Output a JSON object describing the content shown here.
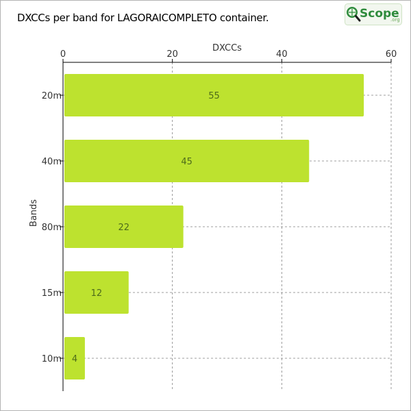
{
  "title": "DXCCs per band for LAGORAICOMPLETO container.",
  "logo": {
    "text": "Scope",
    "suffix": ".org",
    "icon": "magnifier-globe-icon"
  },
  "colors": {
    "bar": "#bde22f",
    "grid": "#808080",
    "axis": "#000000",
    "logo_green": "#2e8b3c"
  },
  "chart_data": {
    "type": "bar",
    "orientation": "horizontal",
    "title": "DXCCs per band for LAGORAICOMPLETO container.",
    "xlabel": "DXCCs",
    "ylabel": "Bands",
    "categories": [
      "20m",
      "40m",
      "80m",
      "15m",
      "10m"
    ],
    "values": [
      55,
      45,
      22,
      12,
      4
    ],
    "xlim": [
      0,
      60
    ],
    "xticks": [
      0,
      20,
      40,
      60
    ],
    "x_axis_position": "top",
    "grid": true,
    "data_labels": true,
    "legend": false
  }
}
